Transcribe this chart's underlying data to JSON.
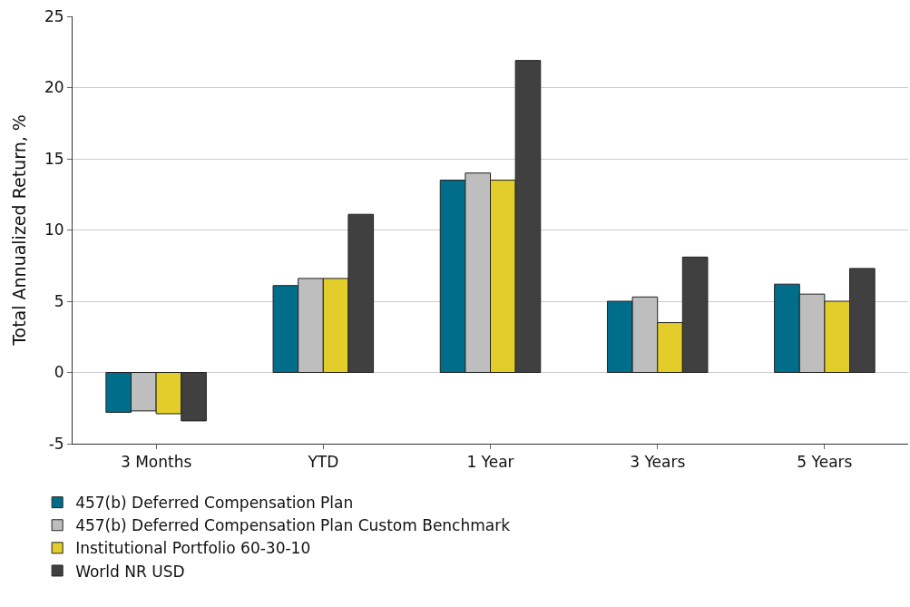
{
  "chart_data": {
    "type": "bar",
    "ylabel": "Total Annualized Return, %",
    "categories": [
      "3 Months",
      "YTD",
      "1 Year",
      "3 Years",
      "5 Years"
    ],
    "series": [
      {
        "name": "457(b) Deferred Compensation Plan",
        "color": "#006e8a",
        "values": [
          -2.8,
          6.1,
          13.5,
          5.0,
          6.2
        ]
      },
      {
        "name": "457(b) Deferred Compensation Plan Custom Benchmark",
        "color": "#bebebe",
        "values": [
          -2.7,
          6.6,
          14.0,
          5.3,
          5.5
        ]
      },
      {
        "name": "Institutional Portfolio 60-30-10",
        "color": "#e2cd2a",
        "values": [
          -2.9,
          6.6,
          13.5,
          3.5,
          5.0
        ]
      },
      {
        "name": "World NR USD",
        "color": "#404040",
        "values": [
          -3.4,
          11.1,
          21.9,
          8.1,
          7.3
        ]
      }
    ],
    "ylim": [
      -5,
      25
    ],
    "yticks": [
      -5,
      0,
      5,
      10,
      15,
      20,
      25
    ],
    "grid": "y",
    "legend": "bottom left"
  }
}
